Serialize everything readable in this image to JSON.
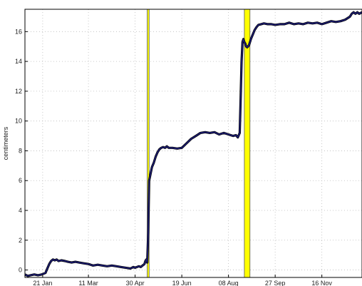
{
  "chart_data": {
    "type": "line",
    "title": "",
    "xlabel": "",
    "ylabel": "centimeters",
    "x_tick_labels": [
      "21 Jan",
      "11 Mar",
      "30 Apr",
      "19 Jun",
      "08 Aug",
      "27 Sep",
      "16 Nov"
    ],
    "x_ticks_day": [
      21,
      70,
      120,
      170,
      220,
      270,
      320
    ],
    "xlim": [
      2,
      363
    ],
    "ylim": [
      -0.5,
      17.5
    ],
    "y_ticks": [
      0,
      2,
      4,
      6,
      8,
      10,
      12,
      14,
      16
    ],
    "grid": "dotted",
    "colors": {
      "line_outer": "#000000",
      "line_inner": "#1a1a6e",
      "band_fill": "#ffff00",
      "band_edge": "#555555",
      "grid": "#bbbbbb",
      "axis": "#000000"
    },
    "shaded_bands": [
      {
        "x_start": 133,
        "x_end": 135
      },
      {
        "x_start": 237,
        "x_end": 243
      }
    ],
    "series": [
      {
        "x": [
          2,
          5,
          8,
          12,
          16,
          20,
          24,
          26,
          28,
          30,
          32,
          34,
          36,
          38,
          41,
          45,
          48,
          52,
          56,
          60,
          65,
          70,
          75,
          80,
          85,
          90,
          95,
          100,
          105,
          110,
          115,
          118,
          120,
          122,
          124,
          126,
          128,
          130,
          131,
          132,
          133,
          134,
          135,
          136,
          137,
          138,
          140,
          142,
          144,
          146,
          148,
          150,
          152,
          154,
          156,
          160,
          165,
          170,
          175,
          180,
          185,
          190,
          195,
          200,
          205,
          210,
          215,
          220,
          225,
          228,
          230,
          232,
          233,
          234,
          235,
          236,
          237,
          238,
          239,
          240,
          241,
          242,
          243,
          244,
          246,
          248,
          250,
          252,
          255,
          258,
          262,
          266,
          270,
          275,
          280,
          285,
          290,
          295,
          300,
          305,
          310,
          315,
          320,
          325,
          330,
          335,
          340,
          345,
          350,
          352,
          354,
          356,
          358,
          360,
          363
        ],
        "y": [
          -0.3,
          -0.4,
          -0.35,
          -0.3,
          -0.35,
          -0.3,
          -0.2,
          0.1,
          0.4,
          0.6,
          0.7,
          0.65,
          0.7,
          0.6,
          0.65,
          0.6,
          0.55,
          0.5,
          0.55,
          0.5,
          0.45,
          0.4,
          0.3,
          0.35,
          0.3,
          0.25,
          0.3,
          0.25,
          0.2,
          0.15,
          0.1,
          0.2,
          0.15,
          0.2,
          0.25,
          0.2,
          0.3,
          0.4,
          0.6,
          0.7,
          0.5,
          2.5,
          6.0,
          6.3,
          6.6,
          6.9,
          7.2,
          7.6,
          7.9,
          8.1,
          8.2,
          8.25,
          8.2,
          8.3,
          8.2,
          8.2,
          8.15,
          8.2,
          8.5,
          8.8,
          9.0,
          9.2,
          9.25,
          9.2,
          9.25,
          9.1,
          9.2,
          9.1,
          9.0,
          9.05,
          8.9,
          9.2,
          11.5,
          14.0,
          15.3,
          15.5,
          15.3,
          15.2,
          15.0,
          14.95,
          15.0,
          15.1,
          15.3,
          15.5,
          15.8,
          16.1,
          16.3,
          16.45,
          16.5,
          16.55,
          16.5,
          16.5,
          16.45,
          16.5,
          16.5,
          16.6,
          16.5,
          16.55,
          16.5,
          16.6,
          16.55,
          16.6,
          16.5,
          16.6,
          16.7,
          16.65,
          16.7,
          16.8,
          17.0,
          17.2,
          17.3,
          17.2,
          17.3,
          17.2,
          17.3
        ]
      }
    ]
  }
}
